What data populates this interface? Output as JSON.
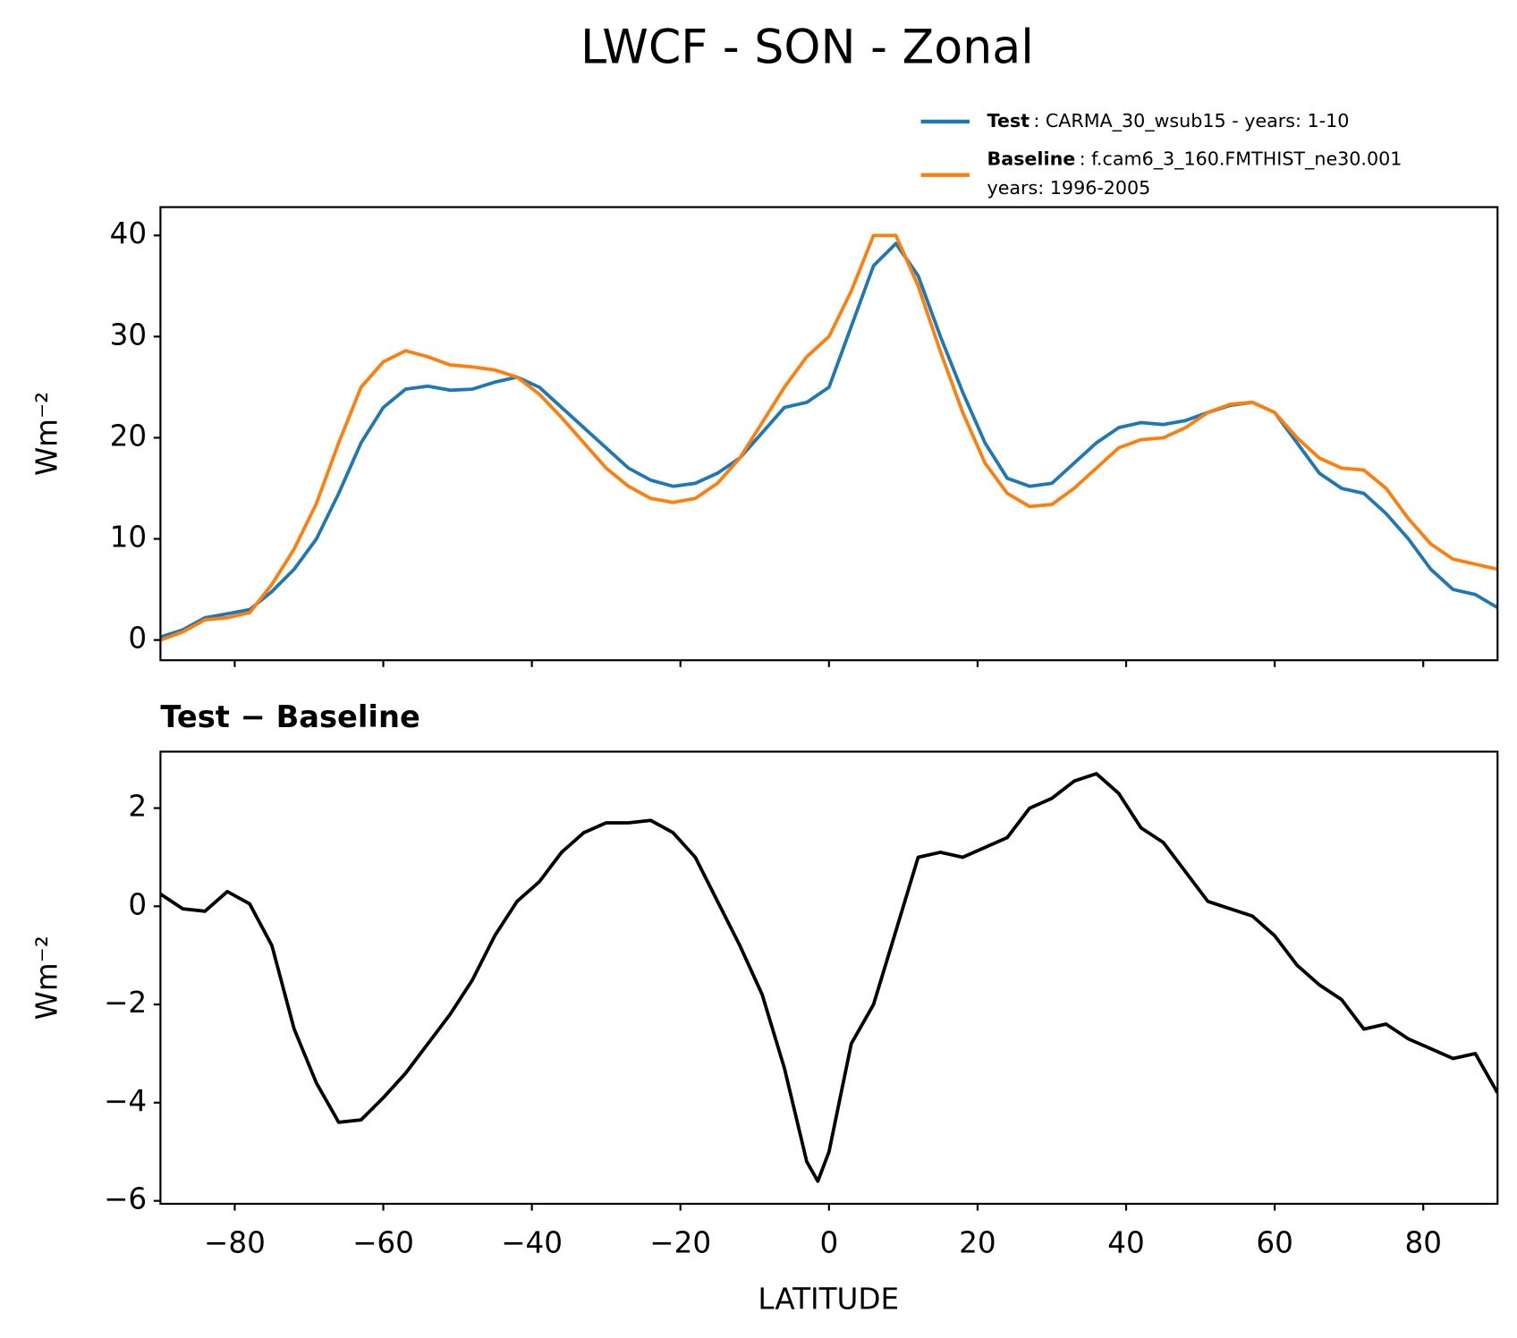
{
  "chart_data": [
    {
      "type": "line",
      "title": "LWCF - SON - Zonal",
      "ylabel": "Wm⁻²",
      "x": [
        -90,
        -87,
        -84,
        -81,
        -78,
        -75,
        -72,
        -69,
        -66,
        -63,
        -60,
        -57,
        -54,
        -51,
        -48,
        -45,
        -42,
        -39,
        -36,
        -33,
        -30,
        -27,
        -24,
        -21,
        -18,
        -15,
        -12,
        -9,
        -6,
        -3,
        0,
        3,
        6,
        9,
        12,
        15,
        18,
        21,
        24,
        27,
        30,
        33,
        36,
        39,
        42,
        45,
        48,
        51,
        54,
        57,
        60,
        63,
        66,
        69,
        72,
        75,
        78,
        81,
        84,
        87,
        90
      ],
      "series": [
        {
          "name": "Test",
          "description": [
            ": CARMA_30_wsub15 - years: 1-10"
          ],
          "color": "#1f77b4",
          "values": [
            0.3,
            1.0,
            2.2,
            2.6,
            3.0,
            4.8,
            7.0,
            10.0,
            14.5,
            19.5,
            23.0,
            24.8,
            25.1,
            24.7,
            24.8,
            25.5,
            26.0,
            25.0,
            23.0,
            21.0,
            19.0,
            17.0,
            15.8,
            15.2,
            15.5,
            16.5,
            18.0,
            20.5,
            23.0,
            23.5,
            25.0,
            31.0,
            37.0,
            39.2,
            36.0,
            30.0,
            24.5,
            19.5,
            16.0,
            15.2,
            15.5,
            17.5,
            19.5,
            21.0,
            21.5,
            21.3,
            21.7,
            22.5,
            23.2,
            23.5,
            22.5,
            19.5,
            16.5,
            15.0,
            14.5,
            12.5,
            10.0,
            7.0,
            5.0,
            4.5,
            3.2
          ]
        },
        {
          "name": "Baseline",
          "description": [
            ": f.cam6_3_160.FMTHIST_ne30.001",
            "years: 1996-2005"
          ],
          "color": "#ff7f0e",
          "values": [
            0.0,
            0.8,
            2.0,
            2.2,
            2.7,
            5.5,
            9.0,
            13.5,
            19.5,
            25.0,
            27.5,
            28.6,
            28.0,
            27.2,
            27.0,
            26.7,
            26.0,
            24.3,
            22.0,
            19.5,
            17.0,
            15.2,
            14.0,
            13.6,
            14.0,
            15.5,
            18.0,
            21.5,
            25.0,
            28.0,
            30.0,
            34.5,
            40.0,
            40.0,
            35.0,
            28.5,
            22.5,
            17.5,
            14.5,
            13.2,
            13.4,
            15.0,
            17.0,
            19.0,
            19.8,
            20.0,
            21.0,
            22.5,
            23.3,
            23.5,
            22.5,
            20.0,
            18.0,
            17.0,
            16.8,
            15.0,
            12.0,
            9.5,
            8.0,
            7.5,
            7.0
          ]
        }
      ],
      "xlim": [
        -90,
        90
      ],
      "xticks": [
        -80,
        -60,
        -40,
        -20,
        0,
        20,
        40,
        60,
        80
      ],
      "ylim": [
        -2.0,
        42.8
      ],
      "yticks": [
        0,
        10,
        20,
        30,
        40
      ]
    },
    {
      "type": "line",
      "title": "Test − Baseline",
      "xlabel": "LATITUDE",
      "ylabel": "Wm⁻²",
      "x": [
        -90,
        -87,
        -84,
        -81,
        -78,
        -75,
        -72,
        -69,
        -66,
        -63,
        -60,
        -57,
        -54,
        -51,
        -48,
        -45,
        -42,
        -39,
        -36,
        -33,
        -30,
        -27,
        -24,
        -21,
        -18,
        -15,
        -12,
        -9,
        -6,
        -3,
        -1.5,
        0,
        3,
        6,
        9,
        12,
        15,
        18,
        21,
        24,
        27,
        30,
        33,
        36,
        39,
        42,
        45,
        48,
        51,
        54,
        57,
        60,
        63,
        66,
        69,
        72,
        75,
        78,
        81,
        84,
        87,
        90
      ],
      "series": [
        {
          "color": "#000000",
          "values": [
            0.25,
            -0.05,
            -0.1,
            0.3,
            0.05,
            -0.8,
            -2.5,
            -3.6,
            -4.4,
            -4.35,
            -3.9,
            -3.4,
            -2.8,
            -2.2,
            -1.5,
            -0.6,
            0.1,
            0.5,
            1.1,
            1.5,
            1.7,
            1.7,
            1.75,
            1.5,
            1.0,
            0.1,
            -0.8,
            -1.8,
            -3.3,
            -5.2,
            -5.6,
            -5.0,
            -2.8,
            -2.0,
            -0.5,
            1.0,
            1.1,
            1.0,
            1.2,
            1.4,
            2.0,
            2.2,
            2.55,
            2.7,
            2.3,
            1.6,
            1.3,
            0.7,
            0.1,
            -0.05,
            -0.2,
            -0.6,
            -1.2,
            -1.6,
            -1.9,
            -2.5,
            -2.4,
            -2.7,
            -2.9,
            -3.1,
            -3.0,
            -3.8
          ]
        }
      ],
      "xlim": [
        -90,
        90
      ],
      "xticks": [
        {
          "value": -80,
          "label": "−80"
        },
        {
          "value": -60,
          "label": "−60"
        },
        {
          "value": -40,
          "label": "−40"
        },
        {
          "value": -20,
          "label": "−20"
        },
        0,
        20,
        40,
        60,
        80
      ],
      "ylim": [
        -6.06,
        3.15
      ],
      "yticks": [
        {
          "value": -6,
          "label": "−6"
        },
        {
          "value": -4,
          "label": "−4"
        },
        {
          "value": -2,
          "label": "−2"
        },
        0,
        2
      ]
    }
  ]
}
